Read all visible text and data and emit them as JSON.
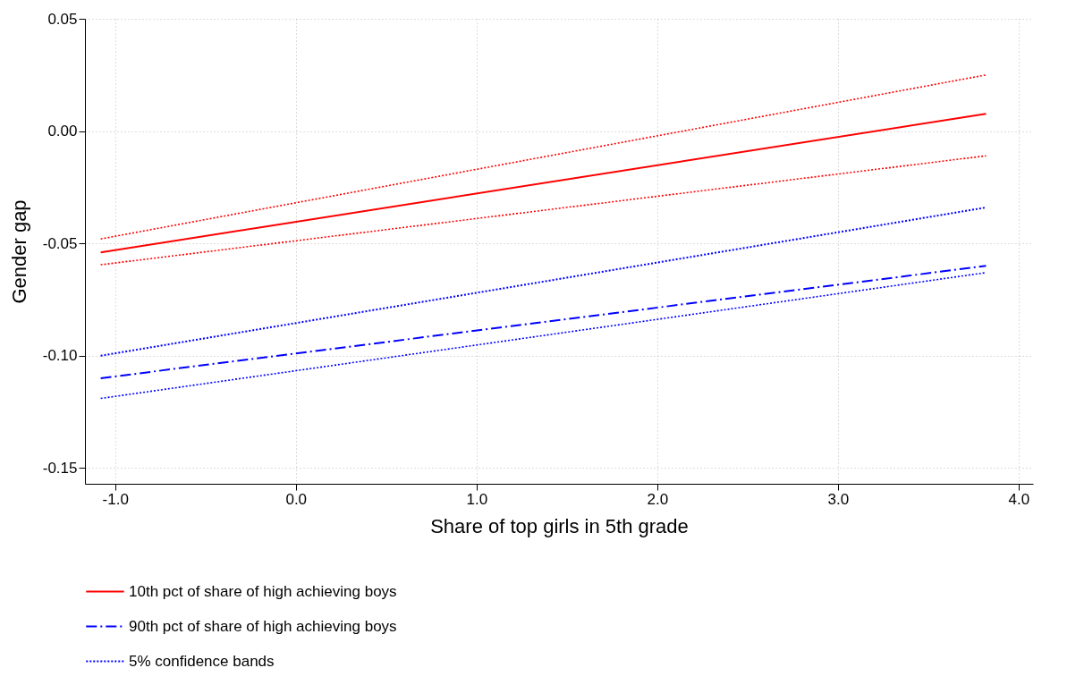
{
  "chart_data": {
    "type": "line",
    "xlabel": "Share of top girls in 5th grade",
    "ylabel": "Gender gap",
    "xlim": [
      -1.167,
      4.08
    ],
    "ylim": [
      -0.157,
      0.05
    ],
    "xticks": [
      {
        "value": -1,
        "label": "-1.0"
      },
      {
        "value": 0,
        "label": "0.0"
      },
      {
        "value": 1,
        "label": "1.0"
      },
      {
        "value": 2,
        "label": "2.0"
      },
      {
        "value": 3,
        "label": "3.0"
      },
      {
        "value": 4,
        "label": "4.0"
      }
    ],
    "yticks": [
      {
        "value": -0.15,
        "label": "-0.15"
      },
      {
        "value": -0.1,
        "label": "-0.10"
      },
      {
        "value": -0.05,
        "label": "-0.05"
      },
      {
        "value": 0,
        "label": "0.00"
      },
      {
        "value": 0.05,
        "label": "0.05"
      }
    ],
    "grid": true,
    "legend": "bottom",
    "x": [
      -1.08,
      3.82
    ],
    "series": [
      {
        "name": "10th pct of share of high achieving boys",
        "color": "#ff0000",
        "line_style": "solid",
        "values": [
          -0.054,
          0.0077
        ]
      },
      {
        "color": "#ff0000",
        "line_style": "dotted",
        "values": [
          -0.048,
          0.025
        ]
      },
      {
        "color": "#ff0000",
        "line_style": "dotted",
        "values": [
          -0.0595,
          -0.011
        ]
      },
      {
        "name": "90th pct of share of high achieving boys",
        "color": "#0000ff",
        "line_style": "dashdot",
        "values": [
          -0.11,
          -0.06
        ]
      },
      {
        "name": "5% confidence bands",
        "color": "#0000ff",
        "line_style": "dotted",
        "values": [
          -0.1,
          -0.034
        ]
      },
      {
        "color": "#0000ff",
        "line_style": "dotted",
        "values": [
          -0.119,
          -0.063
        ]
      }
    ]
  }
}
